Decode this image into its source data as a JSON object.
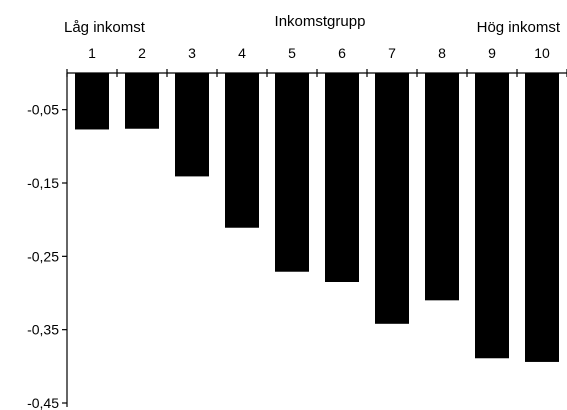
{
  "chart_data": {
    "type": "bar",
    "title": "",
    "xlabel": "Inkomstgrupp",
    "ylabel": "",
    "top_left_label": "Låg inkomst",
    "top_right_label": "Hög inkomst",
    "categories": [
      "1",
      "2",
      "3",
      "4",
      "5",
      "6",
      "7",
      "8",
      "9",
      "10"
    ],
    "values": [
      -0.077,
      -0.076,
      -0.141,
      -0.211,
      -0.271,
      -0.285,
      -0.342,
      -0.31,
      -0.389,
      -0.394
    ],
    "ylim": [
      -0.45,
      0.0
    ],
    "yticks": [
      -0.05,
      -0.15,
      -0.25,
      -0.35,
      -0.45
    ],
    "ytick_labels": [
      "-0,05",
      "-0,15",
      "-0,25",
      "-0,35",
      "-0,45"
    ],
    "grid": false,
    "bar_color": "#000000",
    "legend": null
  }
}
